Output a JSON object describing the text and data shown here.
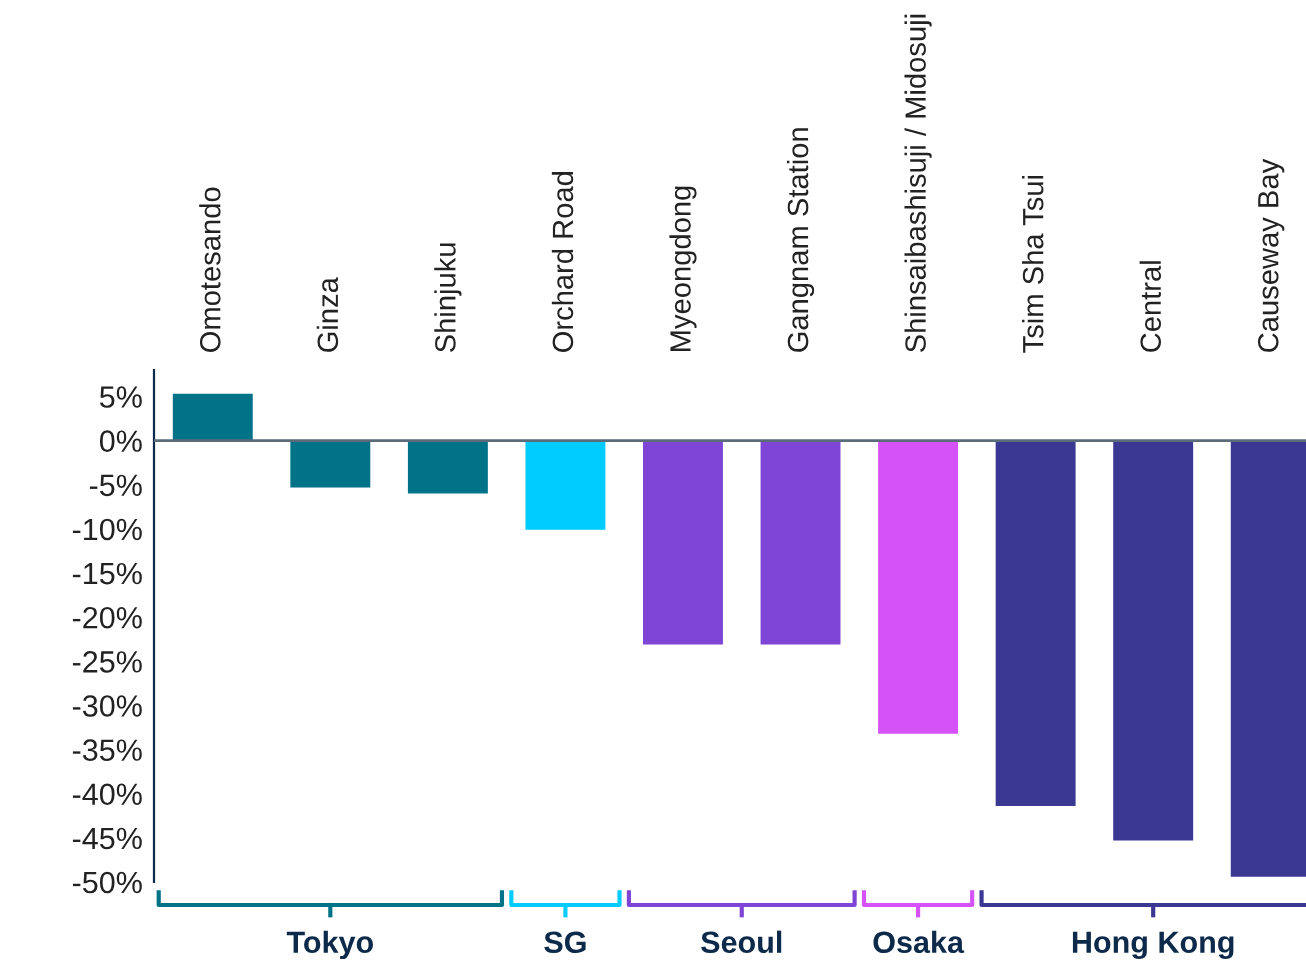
{
  "chart_data": {
    "type": "bar",
    "categories": [
      "Omotesando",
      "Ginza",
      "Shinjuku",
      "Orchard Road",
      "Myeongdong",
      "Gangnam Station",
      "Shinsaibashisuji / Midosuji",
      "Tsim Sha Tsui",
      "Central",
      "Causeway Bay"
    ],
    "values": [
      5.3,
      -5.3,
      -6.0,
      -10.1,
      -23.1,
      -23.1,
      -33.2,
      -41.4,
      -45.3,
      -49.4
    ],
    "colors": [
      "#007389",
      "#007389",
      "#007389",
      "#00ccff",
      "#7f45d6",
      "#7f45d6",
      "#d452f7",
      "#3b3893",
      "#3b3893",
      "#3b3893"
    ],
    "ylim": [
      -50,
      8
    ],
    "yticks": [
      {
        "value": 5,
        "label": "5%"
      },
      {
        "value": 0,
        "label": "0%"
      },
      {
        "value": -5,
        "label": "-5%"
      },
      {
        "value": -10,
        "label": "-10%"
      },
      {
        "value": -15,
        "label": "-15%"
      },
      {
        "value": -20,
        "label": "-20%"
      },
      {
        "value": -25,
        "label": "-25%"
      },
      {
        "value": -30,
        "label": "-30%"
      },
      {
        "value": -35,
        "label": "-35%"
      },
      {
        "value": -40,
        "label": "-40%"
      },
      {
        "value": -45,
        "label": "-45%"
      },
      {
        "value": -50,
        "label": "-50%"
      }
    ],
    "annotations": [
      "Tokyo",
      "SG",
      "Seoul",
      "Osaka",
      "Hong Kong"
    ]
  }
}
